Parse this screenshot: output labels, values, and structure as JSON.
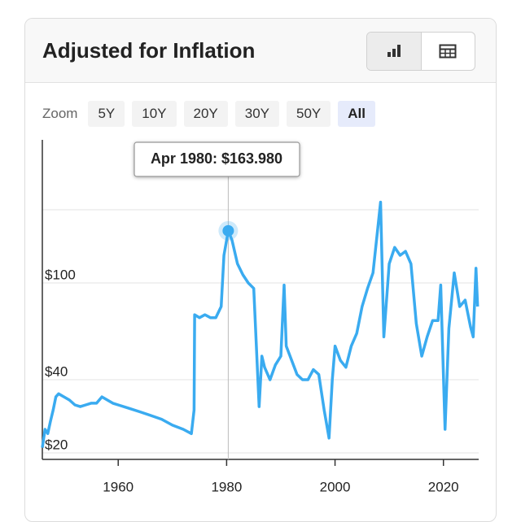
{
  "header": {
    "title": "Adjusted for Inflation"
  },
  "zoom": {
    "label": "Zoom",
    "options": [
      "5Y",
      "10Y",
      "20Y",
      "30Y",
      "50Y",
      "All"
    ],
    "selected": "All"
  },
  "chart_data": {
    "type": "line",
    "log_scale": true,
    "color": "#3aabf0",
    "x": [
      1946,
      1946.5,
      1947,
      1947.5,
      1948,
      1948.5,
      1949,
      1950,
      1951,
      1952,
      1953,
      1954,
      1955,
      1956,
      1957,
      1958,
      1959,
      1960,
      1962,
      1964,
      1966,
      1968,
      1970,
      1972,
      1973.5,
      1974,
      1974.1,
      1975,
      1976,
      1977,
      1978,
      1979,
      1979.5,
      1980.3,
      1981,
      1982,
      1983,
      1984,
      1985,
      1986,
      1986.5,
      1987,
      1988,
      1989,
      1990,
      1990.6,
      1991,
      1992,
      1993,
      1994,
      1995,
      1996,
      1997,
      1998,
      1998.9,
      1999.5,
      2000,
      2001,
      2002,
      2003,
      2004,
      2005,
      2006,
      2007,
      2008.4,
      2009,
      2010,
      2011,
      2012,
      2013,
      2014,
      2015,
      2016,
      2017,
      2018,
      2019,
      2019.5,
      2020.3,
      2021,
      2022,
      2023,
      2024,
      2025,
      2025.5,
      2026,
      2026.3
    ],
    "values": [
      21,
      25,
      24,
      27,
      30,
      34,
      35,
      34,
      33,
      31.5,
      31,
      31.5,
      32,
      32,
      34,
      33,
      32,
      31.5,
      30.5,
      29.5,
      28.5,
      27.5,
      26,
      25,
      24,
      30,
      74,
      72,
      74,
      72,
      72,
      80,
      130,
      163.98,
      150,
      120,
      108,
      100,
      95,
      31,
      50,
      45,
      40,
      46,
      50,
      98,
      55,
      48,
      42,
      40,
      40,
      44,
      42,
      30,
      23,
      40,
      55,
      48,
      45,
      55,
      62,
      80,
      95,
      110,
      215,
      60,
      120,
      140,
      130,
      135,
      120,
      68,
      50,
      60,
      70,
      70,
      98,
      25,
      65,
      110,
      80,
      85,
      66,
      60,
      115,
      80
    ],
    "xlim": [
      1946,
      2026.5
    ],
    "xticks": [
      1960,
      1980,
      2000,
      2020
    ],
    "ylim": [
      18.8,
      388
    ],
    "yticks": [
      {
        "value": 20,
        "label": "$20"
      },
      {
        "value": 40,
        "label": "$40"
      },
      {
        "value": 100,
        "label": "$100"
      }
    ],
    "ygrid": [
      20,
      40,
      100,
      200
    ],
    "highlight": {
      "x": 1980.3,
      "value": 163.98,
      "label": "Apr 1980: $163.980"
    }
  }
}
